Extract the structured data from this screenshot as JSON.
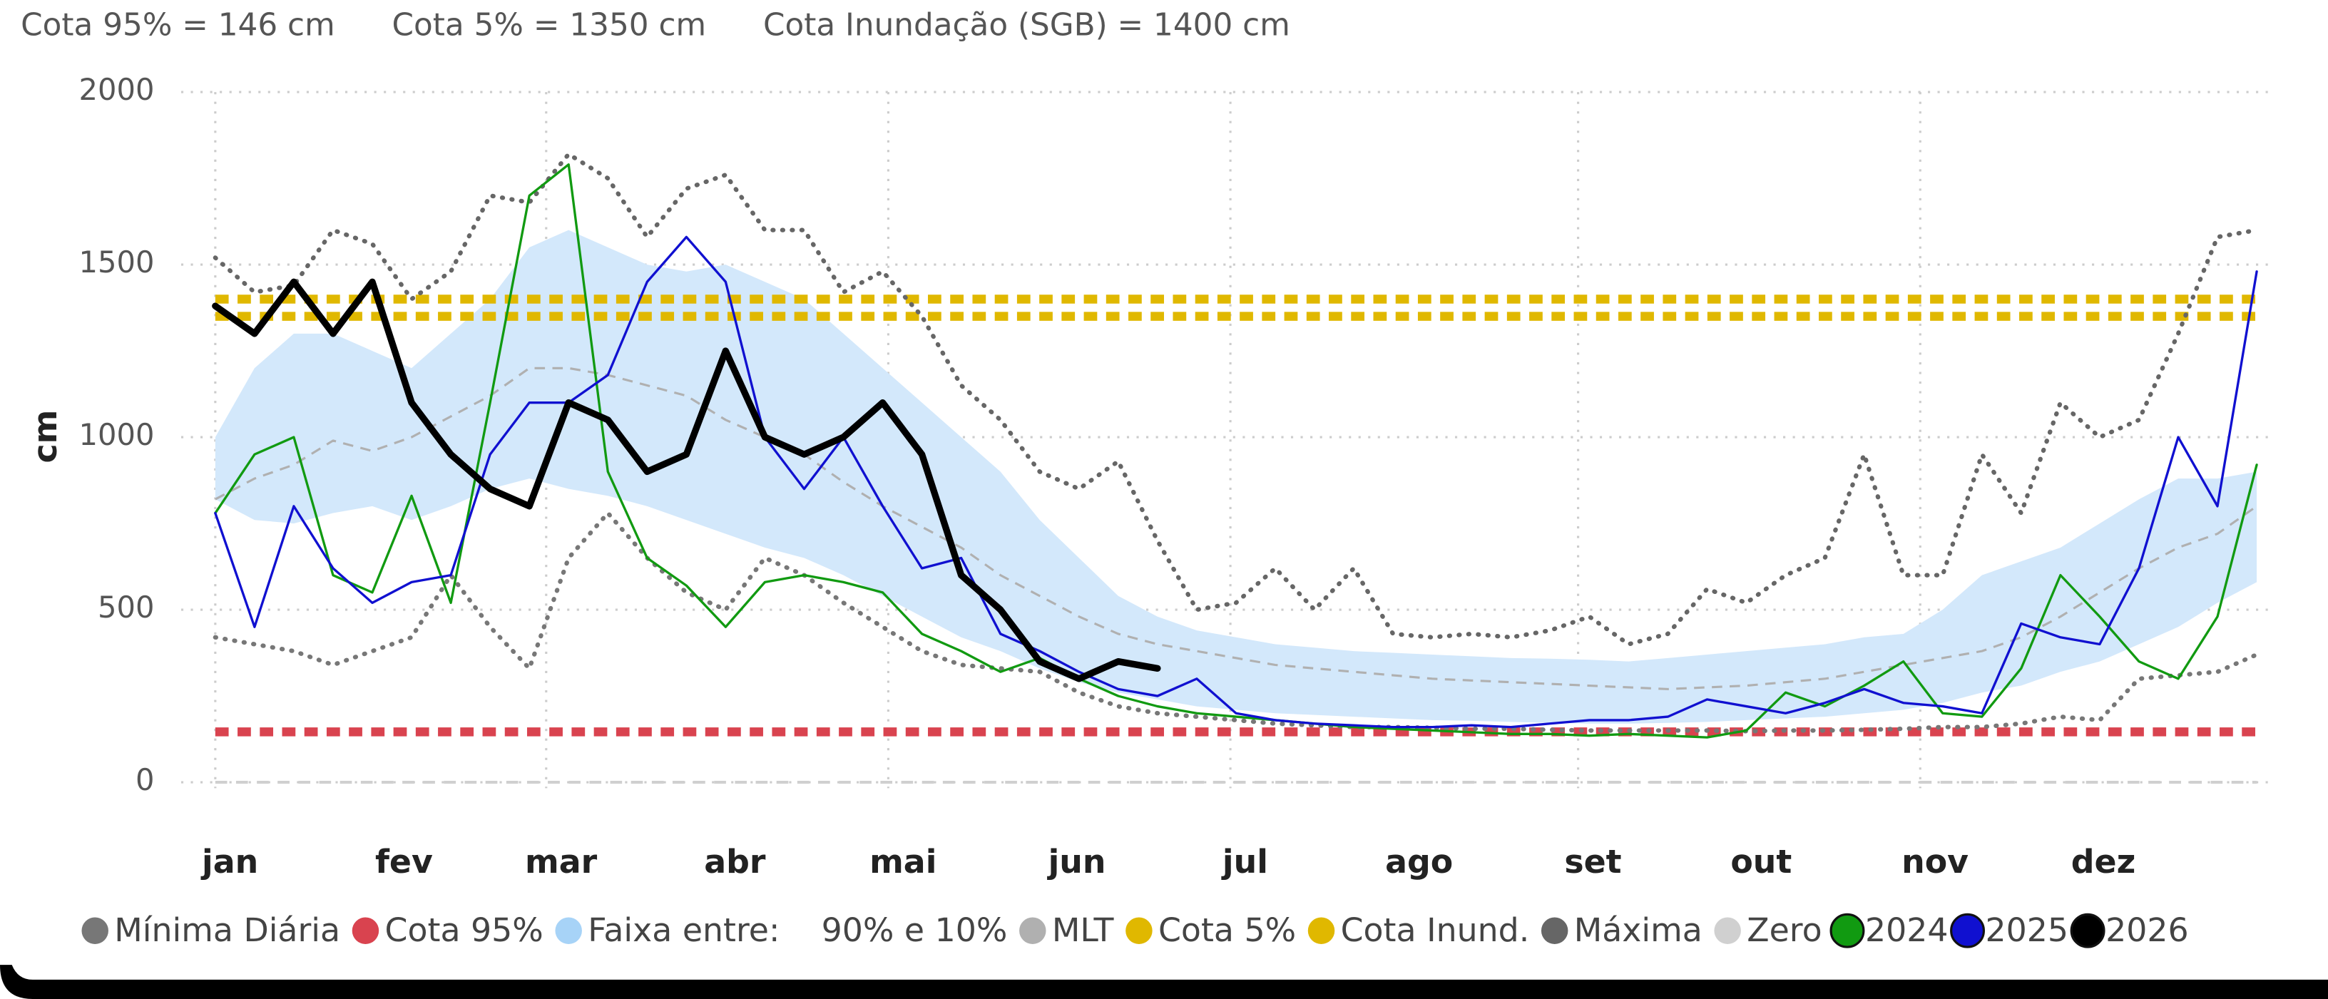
{
  "header_notes": [
    "Cota 95% = 146 cm",
    "Cota 5% = 1350 cm",
    "Cota Inundação (SGB) = 1400 cm"
  ],
  "chart_data": {
    "type": "line",
    "y_label": "cm",
    "ylim": [
      0,
      2000
    ],
    "yticks": [
      0,
      500,
      1000,
      1500,
      2000
    ],
    "grid": true,
    "xlim": [
      1,
      365
    ],
    "xticks": [
      {
        "value": 1,
        "label": "jan"
      },
      {
        "value": 32,
        "label": "fev"
      },
      {
        "value": 60,
        "label": "mar"
      },
      {
        "value": 91,
        "label": "abr"
      },
      {
        "value": 121,
        "label": "mai"
      },
      {
        "value": 152,
        "label": "jun"
      },
      {
        "value": 182,
        "label": "jul"
      },
      {
        "value": 213,
        "label": "ago"
      },
      {
        "value": 244,
        "label": "set"
      },
      {
        "value": 274,
        "label": "out"
      },
      {
        "value": 305,
        "label": "nov"
      },
      {
        "value": 335,
        "label": "dez"
      }
    ],
    "x": [
      1,
      8,
      15,
      22,
      29,
      36,
      43,
      50,
      57,
      64,
      71,
      78,
      85,
      92,
      99,
      106,
      113,
      120,
      127,
      134,
      141,
      148,
      155,
      162,
      169,
      176,
      183,
      190,
      197,
      204,
      211,
      218,
      225,
      232,
      239,
      246,
      253,
      260,
      267,
      274,
      281,
      288,
      295,
      302,
      309,
      316,
      323,
      330,
      337,
      344,
      351,
      358,
      365
    ],
    "series": [
      {
        "name": "Mínima Diária",
        "kind": "line",
        "color": "#777777",
        "style": "dotted",
        "values": [
          420,
          400,
          380,
          340,
          380,
          420,
          600,
          450,
          330,
          650,
          780,
          650,
          550,
          500,
          650,
          600,
          520,
          450,
          380,
          340,
          330,
          320,
          260,
          220,
          200,
          190,
          180,
          170,
          165,
          160,
          160,
          158,
          155,
          155,
          152,
          150,
          150,
          150,
          150,
          148,
          150,
          150,
          152,
          155,
          160,
          160,
          170,
          190,
          180,
          300,
          310,
          320,
          370
        ]
      },
      {
        "name": "Cota 95%",
        "kind": "hline",
        "color": "#d9434f",
        "value": 146
      },
      {
        "name": "Faixa entre:    90% e 10%",
        "kind": "band",
        "color": "#d3e8fb",
        "low": [
          820,
          760,
          750,
          780,
          800,
          760,
          800,
          850,
          880,
          850,
          830,
          800,
          760,
          720,
          680,
          650,
          600,
          540,
          480,
          420,
          380,
          330,
          290,
          260,
          240,
          220,
          210,
          200,
          195,
          190,
          185,
          180,
          178,
          175,
          172,
          170,
          170,
          172,
          175,
          180,
          185,
          190,
          200,
          210,
          230,
          260,
          280,
          320,
          350,
          400,
          450,
          520,
          580
        ],
        "high": [
          1000,
          1200,
          1300,
          1300,
          1250,
          1200,
          1300,
          1400,
          1550,
          1600,
          1550,
          1500,
          1480,
          1500,
          1450,
          1400,
          1300,
          1200,
          1100,
          1000,
          900,
          760,
          650,
          540,
          480,
          440,
          420,
          400,
          390,
          380,
          375,
          370,
          365,
          360,
          358,
          355,
          350,
          360,
          370,
          380,
          390,
          400,
          420,
          430,
          500,
          600,
          640,
          680,
          750,
          820,
          880,
          880,
          900
        ]
      },
      {
        "name": "MLT",
        "kind": "line",
        "color": "#b0b0b0",
        "style": "dashed",
        "values": [
          820,
          880,
          920,
          990,
          960,
          1000,
          1060,
          1120,
          1200,
          1200,
          1180,
          1150,
          1120,
          1050,
          1000,
          950,
          870,
          800,
          740,
          680,
          600,
          540,
          480,
          430,
          400,
          380,
          360,
          340,
          330,
          320,
          310,
          300,
          295,
          290,
          285,
          280,
          275,
          270,
          275,
          280,
          290,
          300,
          320,
          340,
          360,
          380,
          420,
          480,
          550,
          620,
          680,
          720,
          800
        ]
      },
      {
        "name": "Cota 5%",
        "kind": "hline",
        "color": "#e0b800",
        "value": 1350
      },
      {
        "name": "Cota Inund.",
        "kind": "hline",
        "color": "#e0b800",
        "value": 1400
      },
      {
        "name": "Máxima",
        "kind": "line",
        "color": "#666666",
        "style": "dotted",
        "values": [
          1520,
          1420,
          1440,
          1600,
          1560,
          1400,
          1480,
          1700,
          1680,
          1820,
          1750,
          1580,
          1720,
          1760,
          1600,
          1600,
          1420,
          1480,
          1350,
          1150,
          1050,
          900,
          850,
          930,
          700,
          500,
          520,
          620,
          500,
          620,
          430,
          420,
          430,
          420,
          440,
          480,
          400,
          430,
          560,
          520,
          600,
          650,
          950,
          600,
          600,
          950,
          780,
          1100,
          1000,
          1050,
          1300,
          1580,
          1600
        ]
      },
      {
        "name": "Zero",
        "kind": "hline",
        "color": "#d0d0d0",
        "value": 0
      },
      {
        "name": "2024",
        "kind": "line",
        "color": "#119a11",
        "style": "solid",
        "values": [
          780,
          950,
          1000,
          600,
          550,
          830,
          520,
          1100,
          1700,
          1790,
          900,
          650,
          570,
          450,
          580,
          600,
          580,
          550,
          430,
          380,
          320,
          360,
          300,
          250,
          220,
          200,
          190,
          180,
          170,
          160,
          155,
          150,
          145,
          140,
          140,
          135,
          140,
          135,
          130,
          150,
          260,
          220,
          280,
          350,
          200,
          190,
          330,
          600,
          480,
          350,
          300,
          480,
          920
        ]
      },
      {
        "name": "2025",
        "kind": "line",
        "color": "#1010d0",
        "style": "solid",
        "values": [
          780,
          450,
          800,
          620,
          520,
          580,
          600,
          950,
          1100,
          1100,
          1180,
          1450,
          1580,
          1450,
          1000,
          850,
          1000,
          800,
          620,
          650,
          430,
          380,
          320,
          270,
          250,
          300,
          200,
          180,
          170,
          165,
          160,
          160,
          165,
          160,
          170,
          180,
          180,
          190,
          240,
          220,
          200,
          230,
          270,
          230,
          220,
          200,
          460,
          420,
          400,
          620,
          1000,
          800,
          1480
        ]
      },
      {
        "name": "2026",
        "kind": "line",
        "color": "#000000",
        "style": "bold",
        "values": [
          1380,
          1300,
          1450,
          1300,
          1450,
          1100,
          950,
          850,
          800,
          1100,
          1050,
          900,
          950,
          1250,
          1000,
          950,
          1000,
          1100,
          950,
          600,
          500,
          350,
          300,
          350,
          330,
          null,
          null,
          null,
          null,
          null,
          null,
          null,
          null,
          null,
          null,
          null,
          null,
          null,
          null,
          null,
          null,
          null,
          null,
          null,
          null,
          null,
          null,
          null,
          null,
          null,
          null,
          null,
          null
        ]
      }
    ]
  }
}
